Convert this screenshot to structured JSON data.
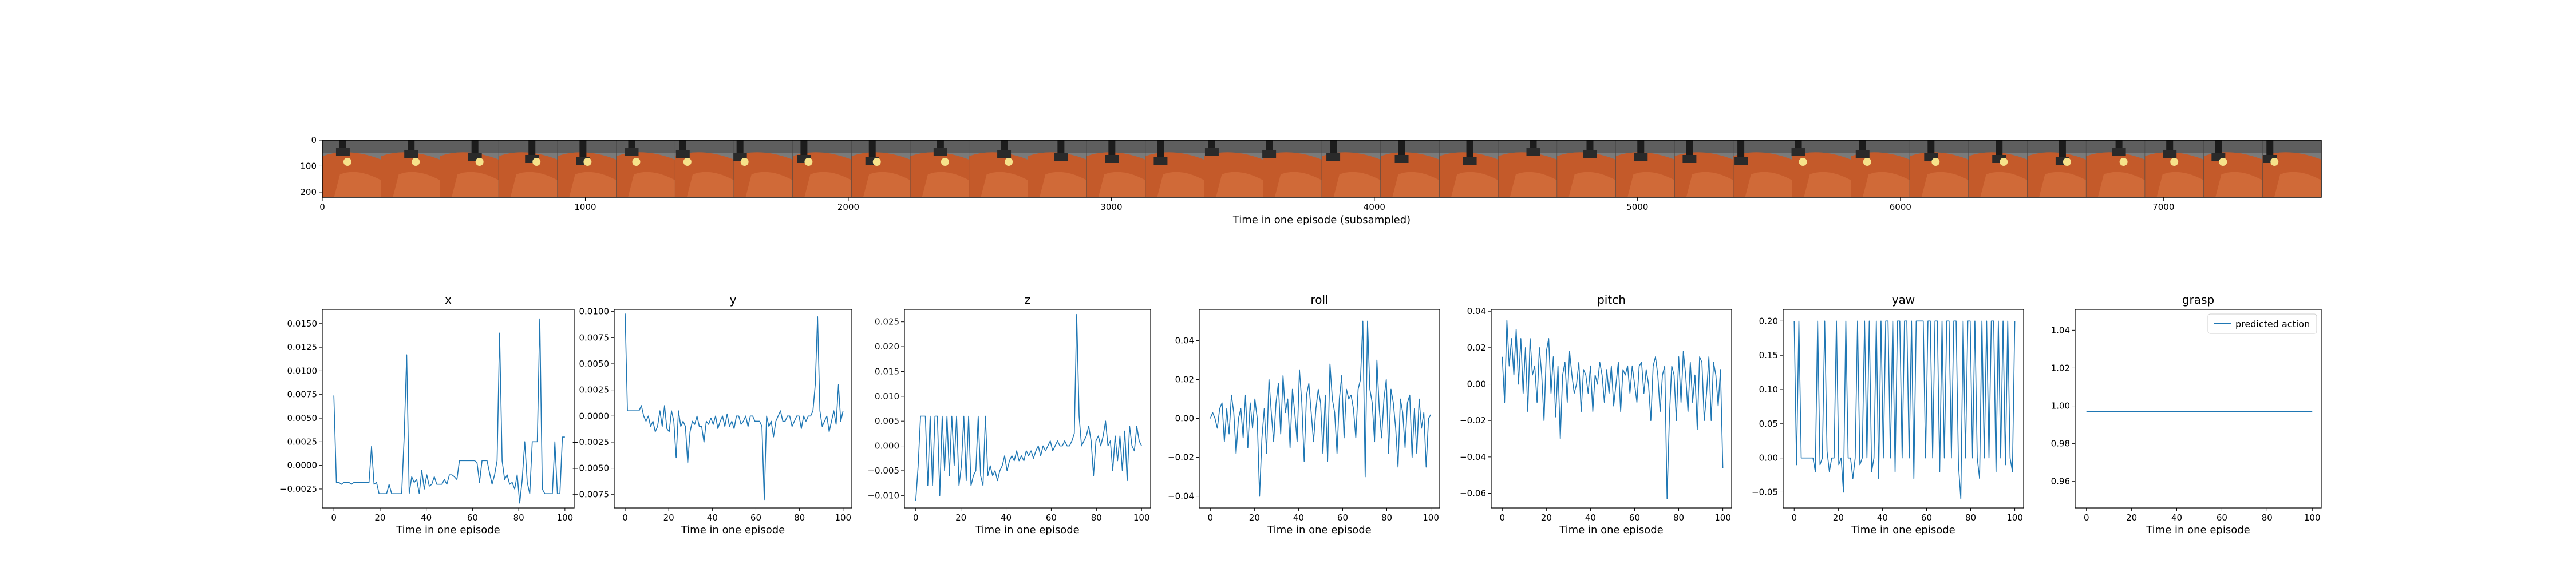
{
  "strip": {
    "xlabel": "Time in one episode (subsampled)",
    "x_ticks": [
      0,
      1000,
      2000,
      3000,
      4000,
      5000,
      6000,
      7000
    ],
    "y_ticks": [
      0,
      100,
      200
    ],
    "xlim": [
      0,
      7600
    ],
    "ylim": [
      0,
      220
    ],
    "frame_count": 34
  },
  "chart_data": [
    {
      "type": "line",
      "title": "x",
      "xlabel": "Time in one episode",
      "ylabel": "",
      "xlim": [
        -5,
        104
      ],
      "ylim": [
        -0.0045,
        0.0165
      ],
      "x_ticks": [
        0,
        20,
        40,
        60,
        80,
        100
      ],
      "y_ticks": [
        -0.0025,
        0.0,
        0.0025,
        0.005,
        0.0075,
        0.01,
        0.0125,
        0.015
      ],
      "y_tick_labels": [
        "−0.0025",
        "0.0000",
        "0.0025",
        "0.0050",
        "0.0075",
        "0.0100",
        "0.0125",
        "0.0150"
      ],
      "color": "#1f77b4",
      "grid": false,
      "series": [
        {
          "values": [
            0.0074,
            -0.0018,
            -0.0018,
            -0.002,
            -0.0018,
            -0.0018,
            -0.0018,
            -0.002,
            -0.0018,
            -0.0018,
            -0.0018,
            -0.0018,
            -0.0018,
            -0.0018,
            -0.0018,
            0.002,
            -0.002,
            -0.0018,
            -0.003,
            -0.003,
            -0.003,
            -0.003,
            -0.002,
            -0.003,
            -0.003,
            -0.003,
            -0.003,
            -0.003,
            0.003,
            0.0117,
            -0.003,
            -0.0012,
            -0.0018,
            -0.0015,
            -0.003,
            -0.0005,
            -0.0025,
            -0.001,
            -0.0022,
            -0.002,
            -0.0012,
            -0.002,
            -0.002,
            -0.002,
            -0.0015,
            -0.002,
            -0.001,
            -0.001,
            -0.0012,
            -0.0015,
            0.0005,
            0.0005,
            0.0005,
            0.0005,
            0.0005,
            0.0005,
            0.0005,
            0.0003,
            -0.0018,
            0.0005,
            0.0005,
            0.0005,
            -0.0008,
            -0.002,
            -0.001,
            0.0005,
            0.014,
            0.0005,
            -0.0015,
            -0.001,
            -0.002,
            -0.0018,
            -0.0025,
            -0.001,
            -0.004,
            -0.0015,
            0.0025,
            -0.0018,
            -0.003,
            0.0025,
            0.0025,
            0.0025,
            0.0155,
            -0.0025,
            -0.003,
            -0.003,
            -0.003,
            -0.003,
            0.0025,
            -0.003,
            -0.003,
            0.003,
            0.003
          ]
        }
      ]
    },
    {
      "type": "line",
      "title": "y",
      "xlabel": "Time in one episode",
      "ylabel": "",
      "xlim": [
        -5,
        104
      ],
      "ylim": [
        -0.0088,
        0.0102
      ],
      "x_ticks": [
        0,
        20,
        40,
        60,
        80,
        100
      ],
      "y_ticks": [
        -0.0075,
        -0.005,
        -0.0025,
        0.0,
        0.0025,
        0.005,
        0.0075,
        0.01
      ],
      "y_tick_labels": [
        "−0.0075",
        "−0.0050",
        "−0.0025",
        "0.0000",
        "0.0025",
        "0.0050",
        "0.0075",
        "0.0100"
      ],
      "color": "#1f77b4",
      "grid": false,
      "series": [
        {
          "values": [
            0.0098,
            0.0005,
            0.0005,
            0.0005,
            0.0005,
            0.0005,
            0.0005,
            0.001,
            0.0,
            -0.0005,
            0.0,
            -0.001,
            -0.0005,
            -0.0015,
            -0.001,
            0.0005,
            -0.001,
            0.001,
            -0.0012,
            -0.0015,
            0.0005,
            -0.0005,
            -0.004,
            0.0005,
            -0.001,
            -0.0005,
            -0.001,
            -0.0045,
            -0.0015,
            -0.0005,
            -0.0008,
            0.0,
            -0.001,
            -0.001,
            -0.0025,
            -0.0005,
            -0.0008,
            -0.0002,
            -0.0008,
            0.0,
            -0.0012,
            -0.0005,
            0.0,
            -0.001,
            0.0002,
            -0.001,
            -0.0005,
            -0.0012,
            0.0,
            0.0,
            -0.0008,
            -0.0005,
            0.0,
            -0.001,
            0.0,
            0.0,
            -0.0005,
            -0.0005,
            -0.0005,
            -0.001,
            -0.008,
            0.0,
            -0.001,
            -0.0005,
            -0.002,
            -0.0005,
            0.0,
            0.0005,
            -0.0005,
            -0.0005,
            0.0,
            0.0,
            -0.001,
            -0.0005,
            0.0,
            0.0,
            -0.0012,
            0.0,
            -0.0005,
            0.0,
            0.0,
            0.0005,
            0.003,
            0.0095,
            0.0005,
            -0.001,
            -0.0005,
            0.0,
            -0.0015,
            -0.0005,
            0.0005,
            -0.0008,
            0.003,
            -0.0005,
            0.0005
          ]
        }
      ]
    },
    {
      "type": "line",
      "title": "z",
      "xlabel": "Time in one episode",
      "ylabel": "",
      "xlim": [
        -5,
        104
      ],
      "ylim": [
        -0.0125,
        0.0275
      ],
      "x_ticks": [
        0,
        20,
        40,
        60,
        80,
        100
      ],
      "y_ticks": [
        -0.01,
        -0.005,
        0.0,
        0.005,
        0.01,
        0.015,
        0.02,
        0.025
      ],
      "y_tick_labels": [
        "−0.010",
        "−0.005",
        "0.000",
        "0.005",
        "0.010",
        "0.015",
        "0.020",
        "0.025"
      ],
      "color": "#1f77b4",
      "grid": false,
      "series": [
        {
          "values": [
            -0.011,
            -0.004,
            0.006,
            0.006,
            0.006,
            -0.008,
            0.006,
            -0.008,
            0.006,
            0.006,
            -0.01,
            0.006,
            -0.005,
            0.006,
            -0.006,
            0.006,
            -0.004,
            0.006,
            -0.008,
            -0.004,
            0.006,
            -0.007,
            0.006,
            -0.008,
            -0.006,
            -0.005,
            0.006,
            -0.006,
            -0.008,
            0.006,
            -0.006,
            -0.004,
            -0.006,
            -0.005,
            -0.007,
            -0.005,
            -0.004,
            -0.002,
            -0.005,
            -0.003,
            -0.002,
            -0.003,
            -0.001,
            -0.003,
            -0.002,
            -0.003,
            -0.001,
            -0.002,
            -0.001,
            -0.0025,
            -0.001,
            0.0,
            -0.002,
            0.0,
            -0.001,
            0.0,
            0.001,
            -0.001,
            0.0,
            0.001,
            0.0,
            0.0,
            0.001,
            0.0,
            0.0,
            0.001,
            0.0025,
            0.0265,
            0.006,
            0.0,
            0.001,
            0.002,
            0.004,
            0.001,
            -0.006,
            0.001,
            0.002,
            0.0,
            0.002,
            0.005,
            0.0,
            0.001,
            -0.005,
            0.002,
            -0.003,
            0.002,
            -0.005,
            0.003,
            -0.007,
            0.004,
            0.0,
            -0.001,
            0.004,
            0.001,
            0.0
          ]
        }
      ]
    },
    {
      "type": "line",
      "title": "roll",
      "xlabel": "Time in one episode",
      "ylabel": "",
      "xlim": [
        -5,
        104
      ],
      "ylim": [
        -0.046,
        0.056
      ],
      "x_ticks": [
        0,
        20,
        40,
        60,
        80,
        100
      ],
      "y_ticks": [
        -0.04,
        -0.02,
        0.0,
        0.02,
        0.04
      ],
      "y_tick_labels": [
        "−0.04",
        "−0.02",
        "0.00",
        "0.02",
        "0.04"
      ],
      "color": "#1f77b4",
      "grid": false,
      "series": [
        {
          "values": [
            0.0,
            0.003,
            0.0,
            -0.005,
            0.005,
            0.008,
            -0.012,
            0.005,
            -0.008,
            0.012,
            0.003,
            -0.018,
            0.0,
            0.005,
            -0.01,
            0.012,
            -0.015,
            0.008,
            -0.005,
            0.01,
            0.0,
            -0.04,
            -0.01,
            0.005,
            -0.018,
            0.02,
            0.003,
            -0.012,
            0.008,
            0.018,
            -0.008,
            0.022,
            0.003,
            0.01,
            -0.015,
            0.015,
            0.003,
            -0.012,
            0.025,
            0.008,
            -0.022,
            0.012,
            0.018,
            0.003,
            -0.012,
            0.005,
            0.015,
            0.008,
            -0.018,
            0.012,
            -0.022,
            0.028,
            0.01,
            0.003,
            -0.018,
            0.01,
            0.022,
            -0.01,
            0.015,
            0.01,
            0.012,
            0.005,
            -0.01,
            0.015,
            0.02,
            0.05,
            -0.03,
            0.05,
            0.015,
            0.008,
            -0.012,
            0.03,
            0.005,
            -0.01,
            0.01,
            0.02,
            -0.018,
            0.015,
            0.008,
            -0.005,
            -0.025,
            0.01,
            0.003,
            -0.015,
            0.008,
            0.012,
            -0.02,
            0.005,
            -0.018,
            0.01,
            -0.005,
            0.003,
            -0.025,
            0.0,
            0.002
          ]
        }
      ]
    },
    {
      "type": "line",
      "title": "pitch",
      "xlabel": "Time in one episode",
      "ylabel": "",
      "xlim": [
        -5,
        104
      ],
      "ylim": [
        -0.068,
        0.041
      ],
      "x_ticks": [
        0,
        20,
        40,
        60,
        80,
        100
      ],
      "y_ticks": [
        -0.06,
        -0.04,
        -0.02,
        0.0,
        0.02,
        0.04
      ],
      "y_tick_labels": [
        "−0.06",
        "−0.04",
        "−0.02",
        "0.00",
        "0.02",
        "0.04"
      ],
      "color": "#1f77b4",
      "grid": false,
      "series": [
        {
          "values": [
            0.015,
            -0.01,
            0.035,
            0.01,
            0.025,
            0.005,
            0.03,
            0.0,
            0.025,
            -0.005,
            0.02,
            -0.015,
            0.025,
            0.005,
            0.01,
            -0.01,
            0.02,
            0.005,
            -0.02,
            0.018,
            0.025,
            -0.005,
            0.015,
            -0.018,
            0.01,
            -0.03,
            0.005,
            0.012,
            -0.01,
            0.018,
            0.005,
            -0.005,
            0.0,
            0.012,
            -0.015,
            0.008,
            0.005,
            -0.005,
            0.01,
            -0.015,
            0.005,
            0.0,
            0.012,
            0.005,
            -0.01,
            0.008,
            -0.005,
            0.01,
            -0.012,
            0.0,
            0.012,
            -0.015,
            0.008,
            0.005,
            0.01,
            -0.005,
            0.01,
            0.0,
            -0.01,
            0.01,
            0.012,
            -0.005,
            0.008,
            0.0,
            -0.02,
            0.01,
            0.015,
            0.005,
            -0.015,
            0.005,
            0.01,
            -0.063,
            -0.018,
            0.01,
            0.005,
            -0.02,
            0.015,
            -0.01,
            0.018,
            0.005,
            -0.015,
            0.012,
            -0.01,
            0.005,
            -0.025,
            0.015,
            0.012,
            -0.02,
            -0.005,
            0.015,
            -0.02,
            0.012,
            0.005,
            -0.012,
            0.008,
            -0.046
          ]
        }
      ]
    },
    {
      "type": "line",
      "title": "yaw",
      "xlabel": "Time in one episode",
      "ylabel": "",
      "xlim": [
        -5,
        104
      ],
      "ylim": [
        -0.073,
        0.217
      ],
      "x_ticks": [
        0,
        20,
        40,
        60,
        80,
        100
      ],
      "y_ticks": [
        -0.05,
        0.0,
        0.05,
        0.1,
        0.15,
        0.2
      ],
      "y_tick_labels": [
        "−0.05",
        "0.00",
        "0.05",
        "0.10",
        "0.15",
        "0.20"
      ],
      "color": "#1f77b4",
      "grid": false,
      "series": [
        {
          "values": [
            0.2,
            -0.01,
            0.2,
            0.0,
            0.0,
            0.0,
            0.0,
            0.0,
            0.0,
            -0.02,
            0.2,
            -0.01,
            0.0,
            0.2,
            0.01,
            -0.02,
            0.0,
            0.0,
            0.2,
            -0.01,
            0.0,
            -0.05,
            0.2,
            0.0,
            0.0,
            -0.03,
            0.0,
            0.2,
            -0.01,
            0.0,
            0.2,
            0.0,
            0.2,
            -0.02,
            0.0,
            0.2,
            -0.03,
            0.2,
            0.0,
            0.2,
            0.2,
            0.0,
            0.2,
            -0.02,
            0.2,
            0.2,
            0.0,
            0.2,
            0.2,
            0.0,
            0.2,
            -0.03,
            0.2,
            0.2,
            0.2,
            0.2,
            0.0,
            0.2,
            0.2,
            0.0,
            0.2,
            0.2,
            -0.02,
            0.2,
            0.0,
            0.2,
            0.2,
            0.0,
            0.2,
            0.2,
            -0.01,
            -0.06,
            0.2,
            0.0,
            0.2,
            0.2,
            0.0,
            0.2,
            0.0,
            -0.03,
            0.2,
            0.0,
            0.2,
            0.0,
            0.2,
            0.2,
            -0.02,
            0.2,
            0.0,
            0.2,
            -0.01,
            0.2,
            0.0,
            -0.02,
            0.2
          ]
        }
      ]
    },
    {
      "type": "line",
      "title": "grasp",
      "xlabel": "Time in one episode",
      "ylabel": "",
      "xlim": [
        -5,
        104
      ],
      "ylim": [
        0.946,
        1.051
      ],
      "x_ticks": [
        0,
        20,
        40,
        60,
        80,
        100
      ],
      "y_ticks": [
        0.96,
        0.98,
        1.0,
        1.02,
        1.04
      ],
      "y_tick_labels": [
        "0.96",
        "0.98",
        "1.00",
        "1.02",
        "1.04"
      ],
      "color": "#1f77b4",
      "grid": false,
      "legend": {
        "label": "predicted action",
        "placement": "upper right"
      },
      "series": [
        {
          "name": "predicted action",
          "values": [
            0.997,
            0.997,
            0.997,
            0.997,
            0.997,
            0.997,
            0.997,
            0.997,
            0.997,
            0.997,
            0.997,
            0.997,
            0.997,
            0.997,
            0.997,
            0.997,
            0.997,
            0.997,
            0.997,
            0.997,
            0.997,
            0.997,
            0.997,
            0.997,
            0.997,
            0.997,
            0.997,
            0.997,
            0.997,
            0.997,
            0.997,
            0.997,
            0.997,
            0.997,
            0.997,
            0.997,
            0.997,
            0.997,
            0.997,
            0.997,
            0.997,
            0.997,
            0.997,
            0.997,
            0.997,
            0.997,
            0.997,
            0.997,
            0.997,
            0.997,
            0.997,
            0.997,
            0.997,
            0.997,
            0.997,
            0.997,
            0.997,
            0.997,
            0.997,
            0.997,
            0.997,
            0.997,
            0.997,
            0.997,
            0.997,
            0.997,
            0.997,
            0.997,
            0.997,
            0.997,
            0.997,
            0.997,
            0.997,
            0.997,
            0.997,
            0.997,
            0.997,
            0.997,
            0.997,
            0.997,
            0.997,
            0.997,
            0.997,
            0.997,
            0.997,
            0.997,
            0.997,
            0.997,
            0.997,
            0.997,
            0.997,
            0.997,
            0.997,
            0.997,
            0.997,
            0.997,
            0.997,
            0.997,
            0.997,
            0.997,
            0.997
          ]
        }
      ]
    }
  ]
}
